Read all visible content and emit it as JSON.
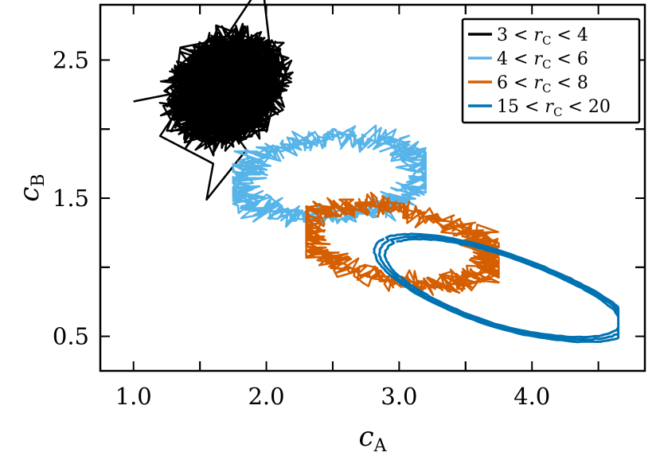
{
  "chart_data": {
    "type": "line",
    "xlabel": "c",
    "xlabel_sub": "A",
    "ylabel": "c",
    "ylabel_sub": "B",
    "xlim": [
      0.75,
      4.85
    ],
    "ylim": [
      0.25,
      2.9
    ],
    "xticks": [
      1.0,
      2.0,
      3.0,
      4.0
    ],
    "xtick_labels": [
      "1.0",
      "2.0",
      "3.0",
      "4.0"
    ],
    "yticks": [
      0.5,
      1.5,
      2.5
    ],
    "ytick_labels": [
      "0.5",
      "1.5",
      "2.5"
    ],
    "grid": false,
    "legend_position": "top-right",
    "series": [
      {
        "name": "3 < r_C < 4",
        "label_pre": "3 < ",
        "label_var": "r",
        "label_sub": "C",
        "label_post": " < 4",
        "color": "#000000",
        "kind": "noisy-cloud",
        "center": [
          1.7,
          2.3
        ],
        "radii": [
          0.5,
          0.4
        ],
        "tilt_deg": 35,
        "extent_x": [
          1.0,
          2.33
        ],
        "extent_y": [
          1.48,
          3.06
        ]
      },
      {
        "name": "4 < r_C < 6",
        "label_pre": "4 < ",
        "label_var": "r",
        "label_sub": "C",
        "label_post": " < 6",
        "color": "#56B4E9",
        "kind": "noisy-ring",
        "center": [
          2.5,
          1.65
        ],
        "radii": [
          0.72,
          0.28
        ],
        "tilt_deg": 5,
        "extent_x": [
          1.75,
          3.2
        ],
        "extent_y": [
          1.2,
          2.03
        ]
      },
      {
        "name": "6 < r_C < 8",
        "label_pre": "6 < ",
        "label_var": "r",
        "label_sub": "C",
        "label_post": " < 8",
        "color": "#D55E00",
        "kind": "noisy-ring",
        "center": [
          3.0,
          1.16
        ],
        "radii": [
          0.72,
          0.26
        ],
        "tilt_deg": -10,
        "extent_x": [
          2.3,
          3.75
        ],
        "extent_y": [
          0.8,
          1.55
        ]
      },
      {
        "name": "15 < r_C < 20",
        "label_pre": "15 < ",
        "label_var": "r",
        "label_sub": "C",
        "label_post": " < 20",
        "color": "#0072B2",
        "kind": "limit-cycle",
        "center": [
          3.72,
          0.85
        ],
        "radii": [
          0.95,
          0.27
        ],
        "tilt_deg": -18,
        "extent_x": [
          2.75,
          4.65
        ],
        "extent_y": [
          0.38,
          1.35
        ]
      }
    ]
  }
}
